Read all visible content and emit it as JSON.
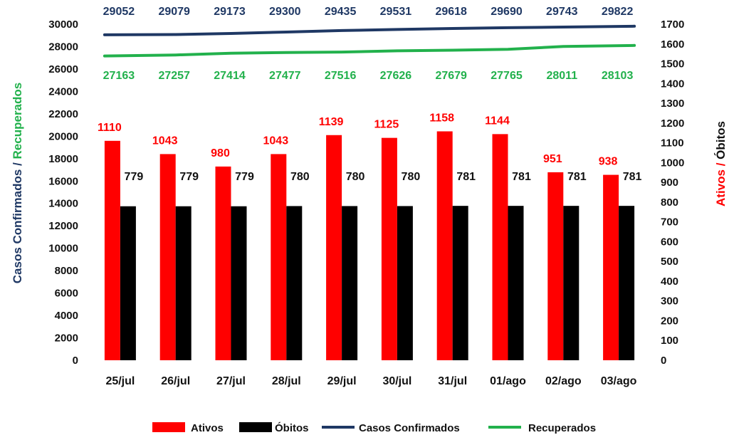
{
  "chart_data": {
    "type": "bar",
    "categories": [
      "25/jul",
      "26/jul",
      "27/jul",
      "28/jul",
      "29/jul",
      "30/jul",
      "31/jul",
      "01/ago",
      "02/ago",
      "03/ago"
    ],
    "series": [
      {
        "name": "Ativos",
        "kind": "bar",
        "axis": "right",
        "color": "#ff0000",
        "values": [
          1110,
          1043,
          980,
          1043,
          1139,
          1125,
          1158,
          1144,
          951,
          938
        ]
      },
      {
        "name": "Óbitos",
        "kind": "bar",
        "axis": "right",
        "color": "#000000",
        "values": [
          779,
          779,
          779,
          780,
          780,
          780,
          781,
          781,
          781,
          781
        ]
      },
      {
        "name": "Casos Confirmados",
        "kind": "line",
        "axis": "left",
        "color": "#1f3864",
        "values": [
          29052,
          29079,
          29173,
          29300,
          29435,
          29531,
          29618,
          29690,
          29743,
          29822
        ]
      },
      {
        "name": "Recuperados",
        "kind": "line",
        "axis": "left",
        "color": "#22b14c",
        "values": [
          27163,
          27257,
          27414,
          27477,
          27516,
          27626,
          27679,
          27765,
          28011,
          28103
        ]
      }
    ],
    "left_axis": {
      "ylim": [
        0,
        30000
      ],
      "ticks": [
        "0",
        "2000",
        "4000",
        "6000",
        "8000",
        "10000",
        "12000",
        "14000",
        "16000",
        "18000",
        "20000",
        "22000",
        "24000",
        "26000",
        "28000",
        "30000"
      ],
      "label_parts": [
        {
          "text": "Casos Confirmados",
          "color": "#1f3864"
        },
        {
          "text": " / ",
          "color": "#1f3864"
        },
        {
          "text": "Recuperados",
          "color": "#22b14c"
        }
      ]
    },
    "right_axis": {
      "ylim": [
        0,
        1700
      ],
      "ticks": [
        "0",
        "100",
        "200",
        "300",
        "400",
        "500",
        "600",
        "700",
        "800",
        "900",
        "1000",
        "1100",
        "1200",
        "1300",
        "1400",
        "1500",
        "1600",
        "1700"
      ],
      "label_parts": [
        {
          "text": "Ativos",
          "color": "#ff0000"
        },
        {
          "text": " / ",
          "color": "#ff0000"
        },
        {
          "text": "Óbitos",
          "color": "#111111"
        }
      ]
    },
    "legend": {
      "position": "bottom",
      "items": [
        {
          "name": "Ativos",
          "marker": "box",
          "color": "#ff0000"
        },
        {
          "name": "Óbitos",
          "marker": "box",
          "color": "#000000"
        },
        {
          "name": "Casos Confirmados",
          "marker": "line",
          "color": "#1f3864"
        },
        {
          "name": "Recuperados",
          "marker": "line",
          "color": "#22b14c"
        }
      ]
    },
    "grid": false,
    "data_labels": true
  }
}
